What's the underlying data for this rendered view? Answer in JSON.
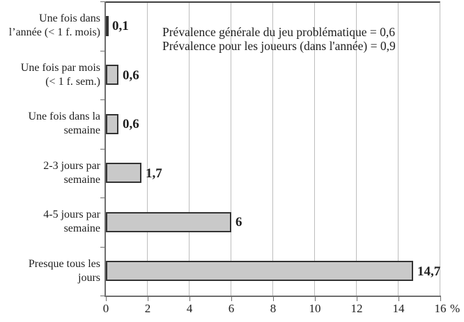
{
  "chart_data": {
    "type": "bar",
    "orientation": "horizontal",
    "title": "",
    "xlabel_unit": "%",
    "xlim": [
      0,
      16
    ],
    "grid_step": 2,
    "grid": true,
    "categories": [
      "Une fois dans\nl’année (< 1 f. mois)",
      "Une fois par mois\n(< 1 f. sem.)",
      "Une fois dans la\nsemaine",
      "2-3 jours par\nsemaine",
      "4-5 jours par\nsemaine",
      "Presque tous les\njours"
    ],
    "values": [
      0.1,
      0.6,
      0.6,
      1.7,
      6,
      14.7
    ],
    "value_labels": [
      "0,1",
      "0,6",
      "0,6",
      "1,7",
      "6",
      "14,7"
    ],
    "x_tick_values": [
      0,
      2,
      4,
      6,
      8,
      10,
      12,
      14,
      16
    ],
    "x_tick_labels": [
      "0",
      "2",
      "4",
      "6",
      "8",
      "10",
      "12",
      "14",
      "16"
    ],
    "annotations": [
      "Prévalence générale du jeu problématique = 0,6",
      "Prévalence pour les joueurs (dans l'année) = 0,9"
    ],
    "colors": {
      "bar_fill": "#c9c9c9",
      "bar_border": "#333333",
      "gridline": "#bdbdbd",
      "axis": "#6e6e6e",
      "text": "#1f1f1f"
    }
  }
}
